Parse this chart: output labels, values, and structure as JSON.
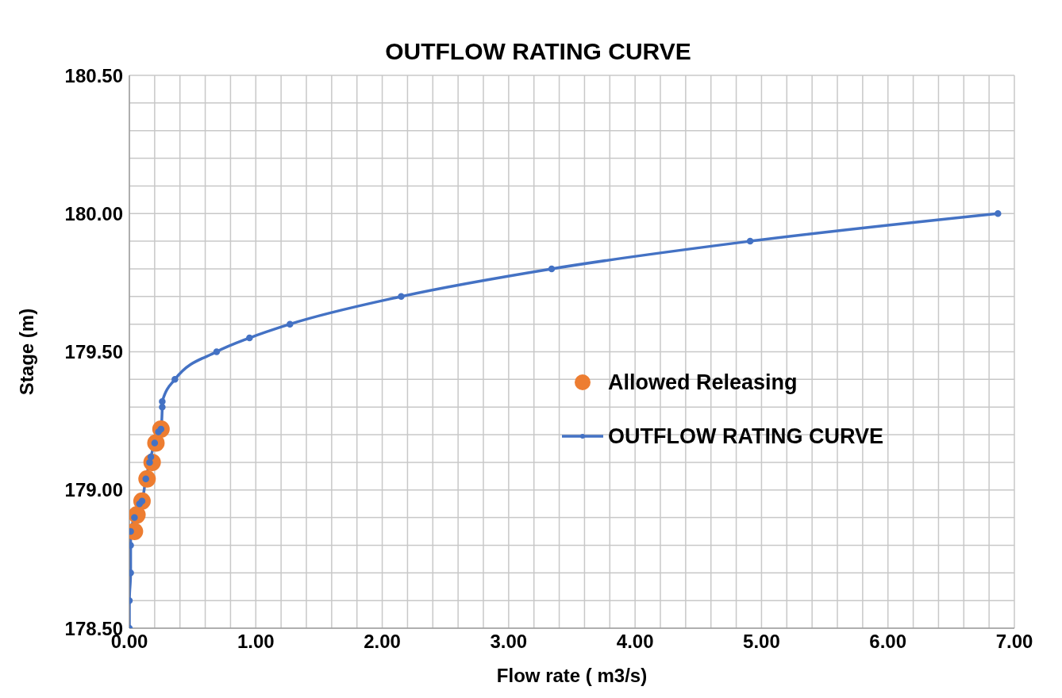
{
  "chart_data": {
    "type": "line",
    "title": "OUTFLOW RATING CURVE",
    "xlabel": "Flow rate ( m3/s)",
    "ylabel": "Stage (m)",
    "xlim": [
      0,
      7
    ],
    "ylim": [
      178.5,
      180.5
    ],
    "xticks": [
      {
        "value": 0,
        "label": "0.00"
      },
      {
        "value": 0.2,
        "label": null
      },
      {
        "value": 0.4,
        "label": null
      },
      {
        "value": 0.6,
        "label": null
      },
      {
        "value": 0.8,
        "label": null
      },
      {
        "value": 1,
        "label": "1.00"
      },
      {
        "value": 1.2,
        "label": null
      },
      {
        "value": 1.4,
        "label": null
      },
      {
        "value": 1.6,
        "label": null
      },
      {
        "value": 1.8,
        "label": null
      },
      {
        "value": 2,
        "label": "2.00"
      },
      {
        "value": 2.2,
        "label": null
      },
      {
        "value": 2.4,
        "label": null
      },
      {
        "value": 2.6,
        "label": null
      },
      {
        "value": 2.8,
        "label": null
      },
      {
        "value": 3,
        "label": "3.00"
      },
      {
        "value": 3.2,
        "label": null
      },
      {
        "value": 3.4,
        "label": null
      },
      {
        "value": 3.6,
        "label": null
      },
      {
        "value": 3.8,
        "label": null
      },
      {
        "value": 4,
        "label": "4.00"
      },
      {
        "value": 4.2,
        "label": null
      },
      {
        "value": 4.4,
        "label": null
      },
      {
        "value": 4.6,
        "label": null
      },
      {
        "value": 4.8,
        "label": null
      },
      {
        "value": 5,
        "label": "5.00"
      },
      {
        "value": 5.2,
        "label": null
      },
      {
        "value": 5.4,
        "label": null
      },
      {
        "value": 5.6,
        "label": null
      },
      {
        "value": 5.8,
        "label": null
      },
      {
        "value": 6,
        "label": "6.00"
      },
      {
        "value": 6.2,
        "label": null
      },
      {
        "value": 6.4,
        "label": null
      },
      {
        "value": 6.6,
        "label": null
      },
      {
        "value": 6.8,
        "label": null
      },
      {
        "value": 7,
        "label": "7.00"
      }
    ],
    "yticks": [
      {
        "value": 178.5,
        "label": "178.50"
      },
      {
        "value": 178.6,
        "label": null
      },
      {
        "value": 178.7,
        "label": null
      },
      {
        "value": 178.8,
        "label": null
      },
      {
        "value": 178.9,
        "label": null
      },
      {
        "value": 179,
        "label": "179.00"
      },
      {
        "value": 179.1,
        "label": null
      },
      {
        "value": 179.2,
        "label": null
      },
      {
        "value": 179.3,
        "label": null
      },
      {
        "value": 179.4,
        "label": null
      },
      {
        "value": 179.5,
        "label": "179.50"
      },
      {
        "value": 179.6,
        "label": null
      },
      {
        "value": 179.7,
        "label": null
      },
      {
        "value": 179.8,
        "label": null
      },
      {
        "value": 179.9,
        "label": null
      },
      {
        "value": 180,
        "label": "180.00"
      },
      {
        "value": 180.1,
        "label": null
      },
      {
        "value": 180.2,
        "label": null
      },
      {
        "value": 180.3,
        "label": null
      },
      {
        "value": 180.4,
        "label": null
      },
      {
        "value": 180.5,
        "label": "180.50"
      }
    ],
    "grid": true,
    "legend": "right",
    "marker": "circle",
    "line_style": "solid",
    "series": [
      {
        "name": "Allowed Releasing",
        "type": "scatter",
        "color": "#ed7d31",
        "x": [
          0.04,
          0.06,
          0.1,
          0.14,
          0.18,
          0.21,
          0.25
        ],
        "values": [
          178.85,
          178.91,
          178.96,
          179.04,
          179.1,
          179.17,
          179.22
        ]
      },
      {
        "name": "OUTFLOW RATING CURVE",
        "color": "#4472c4",
        "x": [
          0,
          0,
          0.01,
          0.01,
          0.01,
          0.04,
          0.08,
          0.1,
          0.13,
          0.16,
          0.17,
          0.2,
          0.23,
          0.25,
          0.26,
          0.26,
          0.36,
          0.69,
          0.95,
          1.27,
          2.15,
          3.34,
          4.91,
          6.87
        ],
        "values": [
          178.5,
          178.6,
          178.7,
          178.8,
          178.85,
          178.9,
          178.95,
          178.96,
          179.04,
          179.1,
          179.12,
          179.17,
          179.21,
          179.22,
          179.3,
          179.32,
          179.4,
          179.5,
          179.55,
          179.6,
          179.7,
          179.8,
          179.9,
          180
        ]
      }
    ]
  }
}
